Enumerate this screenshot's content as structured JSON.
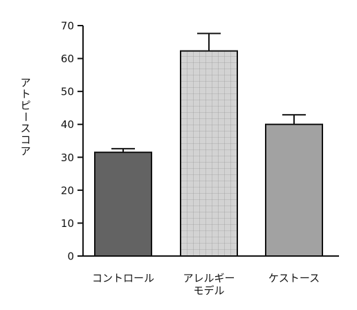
{
  "chart_data": {
    "type": "bar",
    "categories": [
      "コントロール",
      "アレルギー\nモデル",
      "ケストース"
    ],
    "values": [
      31.5,
      62.3,
      40.0
    ],
    "errors": [
      1.1,
      5.3,
      2.9
    ],
    "ylabel": "アトピースコア",
    "xlabel": "",
    "title": "",
    "ylim": [
      0,
      70
    ],
    "yticks": [
      0,
      10,
      20,
      30,
      40,
      50,
      60,
      70
    ],
    "grid": false,
    "legend": "none",
    "bar_colors": [
      "#636363",
      "#d3d3d3",
      "#a2a2a2"
    ],
    "bar_patterns": [
      "solid",
      "grid",
      "solid"
    ]
  }
}
